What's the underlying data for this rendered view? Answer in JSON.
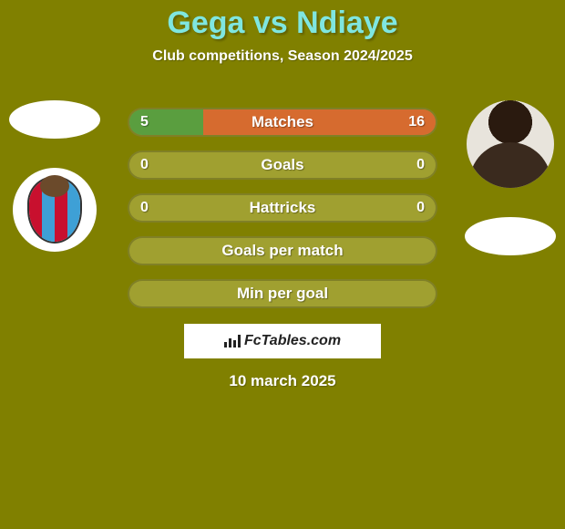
{
  "title": {
    "text": "Gega vs Ndiaye",
    "color": "#7fe6e0",
    "fontsize": 34
  },
  "subtitle": {
    "text": "Club competitions, Season 2024/2025",
    "fontsize": 16
  },
  "background_color": "#808000",
  "left_player": {
    "badge_stripes": [
      "#c8102e",
      "#3ea0d6",
      "#c8102e",
      "#3ea0d6"
    ],
    "badge_ball_color": "#6b4a2b"
  },
  "stats": {
    "rows": [
      {
        "label": "Matches",
        "left": "5",
        "right": "16",
        "left_pct": 24,
        "right_pct": 76
      },
      {
        "label": "Goals",
        "left": "0",
        "right": "0",
        "left_pct": 0,
        "right_pct": 0
      },
      {
        "label": "Hattricks",
        "left": "0",
        "right": "0",
        "left_pct": 0,
        "right_pct": 0
      },
      {
        "label": "Goals per match",
        "left": "",
        "right": "",
        "left_pct": 0,
        "right_pct": 0
      },
      {
        "label": "Min per goal",
        "left": "",
        "right": "",
        "left_pct": 0,
        "right_pct": 0
      }
    ],
    "bar_left_color": "#5a9e3f",
    "bar_right_color": "#d66b2f",
    "row_bg": "#a0a030",
    "label_fontsize": 17,
    "value_fontsize": 16
  },
  "footer": {
    "brand": "FcTables.com",
    "brand_fontsize": 16,
    "date": "10 march 2025",
    "date_fontsize": 17
  }
}
